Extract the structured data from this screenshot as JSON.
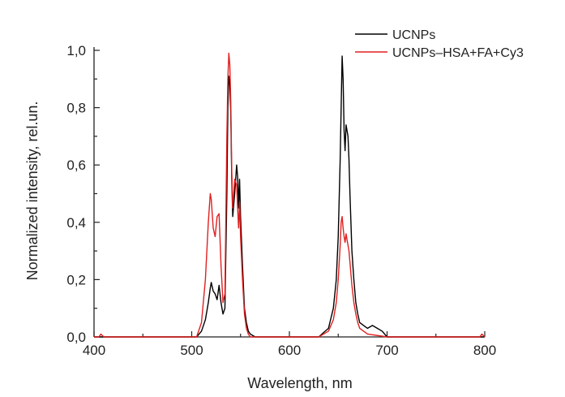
{
  "chart_data": {
    "type": "line",
    "title": "",
    "xlabel": "Wavelength, nm",
    "ylabel": "Normalized intensity, rel.un.",
    "xlim": [
      400,
      800
    ],
    "ylim": [
      0,
      1.0
    ],
    "x_ticks": [
      400,
      500,
      600,
      700,
      800
    ],
    "x_tick_labels": [
      "400",
      "500",
      "600",
      "700",
      "800"
    ],
    "y_ticks": [
      0,
      0.2,
      0.4,
      0.6,
      0.8,
      1.0
    ],
    "y_tick_labels": [
      "0,0",
      "0,2",
      "0,4",
      "0,6",
      "0,8",
      "1,0"
    ],
    "grid": false,
    "legend_position": "top-right",
    "series": [
      {
        "name": "UCNPs",
        "color": "#000000",
        "x": [
          400,
          505,
          510,
          514,
          517,
          519,
          520,
          522,
          524,
          526,
          528,
          530,
          532,
          534,
          536,
          537,
          538,
          539,
          540,
          541,
          542,
          544,
          546,
          547,
          548,
          549,
          550,
          552,
          554,
          556,
          558,
          560,
          565,
          630,
          640,
          645,
          648,
          650,
          652,
          653,
          654,
          655,
          656,
          657,
          658,
          659,
          660,
          661,
          662,
          663,
          664,
          666,
          668,
          670,
          672,
          676,
          680,
          685,
          690,
          695,
          700,
          800
        ],
        "y": [
          0.0,
          0.0,
          0.02,
          0.06,
          0.12,
          0.17,
          0.19,
          0.16,
          0.15,
          0.13,
          0.18,
          0.12,
          0.08,
          0.1,
          0.5,
          0.8,
          0.91,
          0.88,
          0.78,
          0.55,
          0.42,
          0.5,
          0.6,
          0.56,
          0.45,
          0.55,
          0.42,
          0.25,
          0.1,
          0.05,
          0.02,
          0.01,
          0.0,
          0.0,
          0.03,
          0.1,
          0.2,
          0.35,
          0.62,
          0.8,
          0.98,
          0.9,
          0.72,
          0.65,
          0.74,
          0.72,
          0.7,
          0.62,
          0.5,
          0.4,
          0.3,
          0.2,
          0.12,
          0.08,
          0.05,
          0.04,
          0.03,
          0.04,
          0.03,
          0.02,
          0.0,
          0.0
        ]
      },
      {
        "name": "UCNPs–HSA+FA+Cy3",
        "color": "#e02020",
        "x": [
          400,
          405,
          407,
          410,
          505,
          510,
          514,
          517,
          519,
          520,
          522,
          524,
          526,
          528,
          530,
          532,
          534,
          536,
          537,
          538,
          539,
          540,
          541,
          542,
          544,
          546,
          547,
          548,
          549,
          550,
          552,
          554,
          556,
          558,
          560,
          565,
          630,
          640,
          645,
          648,
          650,
          652,
          653,
          654,
          655,
          656,
          657,
          658,
          659,
          660,
          661,
          662,
          663,
          664,
          666,
          668,
          670,
          672,
          676,
          680,
          700,
          795,
          797,
          800
        ],
        "y": [
          0.0,
          0.0,
          0.01,
          0.0,
          0.0,
          0.05,
          0.2,
          0.4,
          0.5,
          0.48,
          0.38,
          0.35,
          0.42,
          0.43,
          0.25,
          0.12,
          0.15,
          0.7,
          0.9,
          0.99,
          0.95,
          0.82,
          0.58,
          0.45,
          0.55,
          0.53,
          0.45,
          0.38,
          0.47,
          0.35,
          0.2,
          0.08,
          0.03,
          0.01,
          0.0,
          0.0,
          0.0,
          0.02,
          0.06,
          0.12,
          0.2,
          0.32,
          0.4,
          0.42,
          0.38,
          0.35,
          0.33,
          0.36,
          0.34,
          0.32,
          0.3,
          0.26,
          0.22,
          0.18,
          0.12,
          0.08,
          0.05,
          0.03,
          0.02,
          0.01,
          0.0,
          0.0,
          0.01,
          0.0
        ]
      }
    ]
  }
}
